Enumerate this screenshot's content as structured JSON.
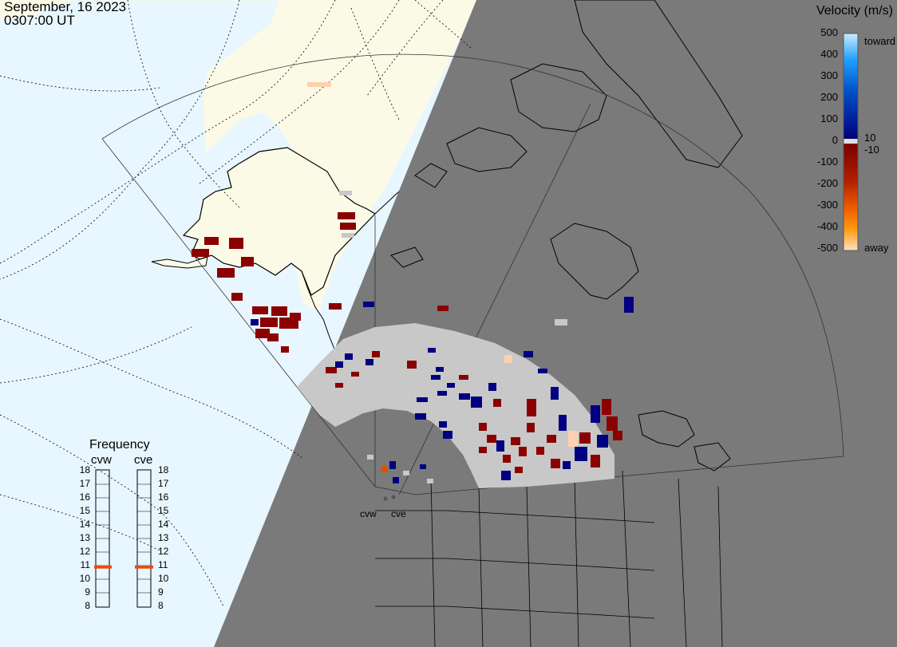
{
  "header": {
    "date": "September, 16 2023",
    "time": "0307:00 UT"
  },
  "colorbar": {
    "title": "Velocity (m/s)",
    "ticks": [
      "500",
      "400",
      "300",
      "200",
      "100",
      "0",
      "-100",
      "-200",
      "-300",
      "-400",
      "-500"
    ],
    "inner_labels": [
      "10",
      "-10"
    ],
    "toward_label": "toward",
    "away_label": "away"
  },
  "frequency": {
    "title": "Frequency",
    "radars": [
      "cvw",
      "cve"
    ],
    "scale": [
      "18",
      "17",
      "16",
      "15",
      "14",
      "13",
      "12",
      "11",
      "10",
      "9",
      "8"
    ],
    "current_mhz": [
      10.9,
      10.9
    ],
    "marker_color": "#e84c10"
  },
  "map": {
    "station_labels": [
      "cvw",
      "cve"
    ]
  },
  "colors": {
    "ocean": "#e8f6ff",
    "land": "#fbfae6",
    "night": "#7a7a7a",
    "ground_scatter": "#c8c8c8",
    "dark_red": "#8b0000",
    "navy": "#000080"
  }
}
